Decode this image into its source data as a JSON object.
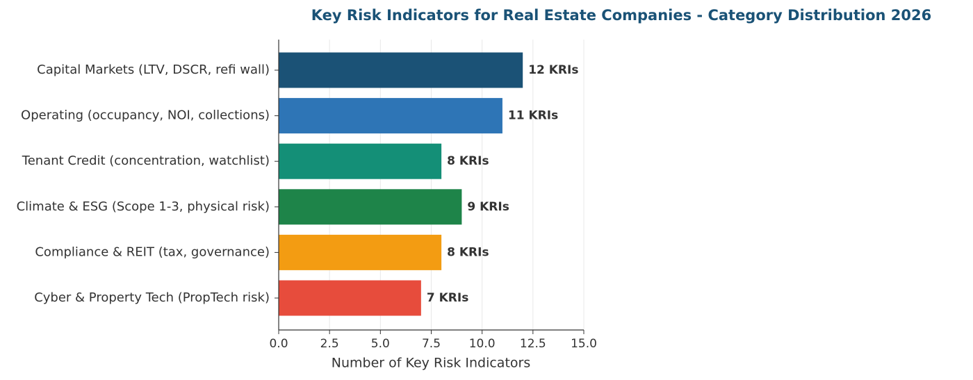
{
  "chart_data": {
    "type": "bar",
    "orientation": "horizontal",
    "title": "Key Risk Indicators for Real Estate Companies - Category Distribution 2026",
    "xlabel": "Number of Key Risk Indicators",
    "categories": [
      "Capital Markets (LTV, DSCR, refi wall)",
      "Operating (occupancy, NOI, collections)",
      "Tenant Credit (concentration, watchlist)",
      "Climate & ESG (Scope 1-3, physical risk)",
      "Compliance & REIT (tax, governance)",
      "Cyber & Property Tech (PropTech risk)"
    ],
    "values": [
      12,
      11,
      8,
      9,
      8,
      7
    ],
    "value_labels": [
      "12 KRIs",
      "11 KRIs",
      "8 KRIs",
      "9 KRIs",
      "8 KRIs",
      "7 KRIs"
    ],
    "colors": [
      "#1b5276",
      "#2e75b6",
      "#148f77",
      "#1e8449",
      "#f39c12",
      "#e74c3c"
    ],
    "xlim": [
      0,
      15
    ],
    "xticks": [
      {
        "value": 0,
        "label": "0.0"
      },
      2.5,
      {
        "value": 5,
        "label": "5.0"
      },
      7.5,
      {
        "value": 10,
        "label": "10.0"
      },
      12.5,
      {
        "value": 15,
        "label": "15.0"
      }
    ],
    "grid": true
  }
}
